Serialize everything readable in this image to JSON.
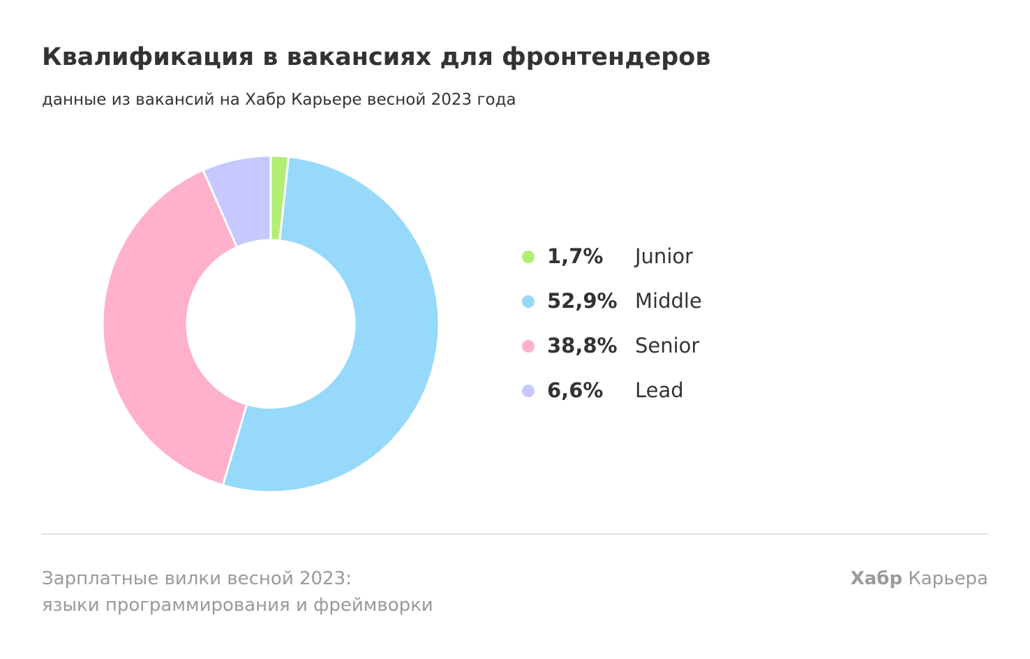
{
  "header": {
    "title": "Квалификация в вакансиях для фронтендеров",
    "subtitle": "данные из вакансий на Хабр Карьере весной 2023 года"
  },
  "chart_data": {
    "type": "pie",
    "style": "donut",
    "title": "Квалификация в вакансиях для фронтендеров",
    "subtitle": "данные из вакансий на Хабр Карьере весной 2023 года",
    "legend_position": "right",
    "slices": [
      {
        "label": "Junior",
        "value": 1.7,
        "value_label": "1,7%",
        "color": "#b2ee73"
      },
      {
        "label": "Middle",
        "value": 52.9,
        "value_label": "52,9%",
        "color": "#97d9fb"
      },
      {
        "label": "Senior",
        "value": 38.8,
        "value_label": "38,8%",
        "color": "#ffb0cb"
      },
      {
        "label": "Lead",
        "value": 6.6,
        "value_label": "6,6%",
        "color": "#c6c8ff"
      }
    ]
  },
  "footer": {
    "source_line1": "Зарплатные вилки весной 2023:",
    "source_line2": "языки программирования и фреймворки",
    "brand_bold": "Хабр",
    "brand_regular": "Карьера"
  }
}
